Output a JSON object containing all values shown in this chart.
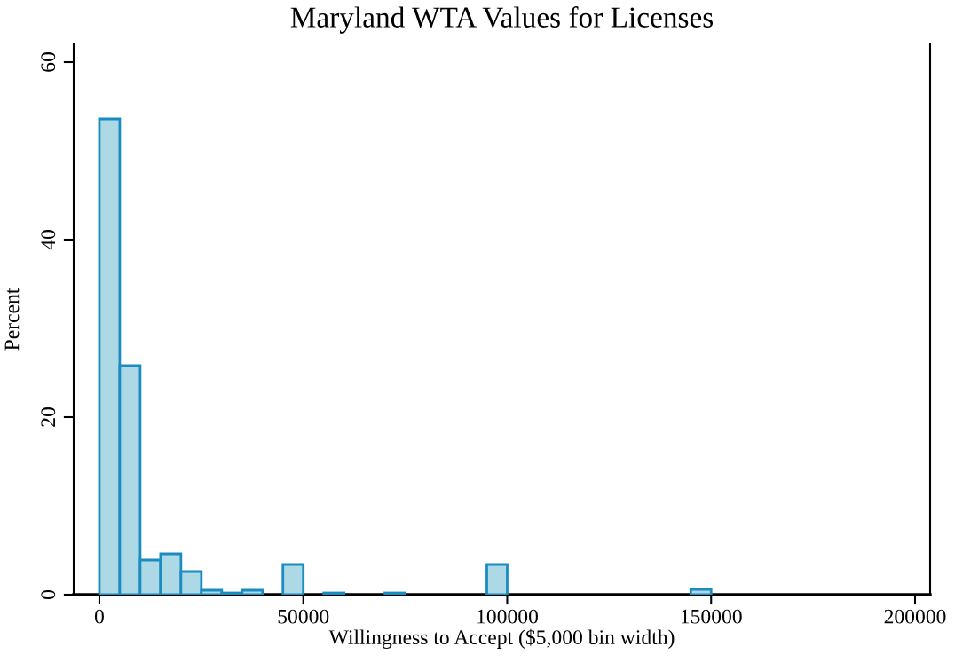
{
  "chart_data": {
    "type": "histogram",
    "title": "Maryland WTA Values for Licenses",
    "xlabel": "Willingness to Accept ($5,000 bin width)",
    "ylabel": "Percent",
    "bins": [
      0,
      5000,
      10000,
      15000,
      20000,
      25000,
      30000,
      35000,
      40000,
      45000,
      50000,
      55000,
      60000,
      65000,
      70000,
      75000,
      80000,
      85000,
      90000,
      95000,
      100000,
      105000,
      110000,
      115000,
      120000,
      125000,
      130000,
      135000,
      140000,
      145000,
      150000
    ],
    "values": [
      53.6,
      25.8,
      3.9,
      4.6,
      2.6,
      0.5,
      0.2,
      0.5,
      0,
      3.4,
      0,
      0.2,
      0,
      0,
      0.2,
      0,
      0,
      0,
      0,
      3.4,
      0,
      0,
      0,
      0,
      0,
      0,
      0,
      0,
      0,
      0.6
    ],
    "color": "#add8e6",
    "xlim": [
      -6300,
      203700
    ],
    "ylim": [
      0,
      62
    ],
    "xticks": [
      0,
      50000,
      100000,
      150000,
      200000
    ],
    "yticks": [
      0,
      20,
      40,
      60
    ],
    "grid": false
  }
}
